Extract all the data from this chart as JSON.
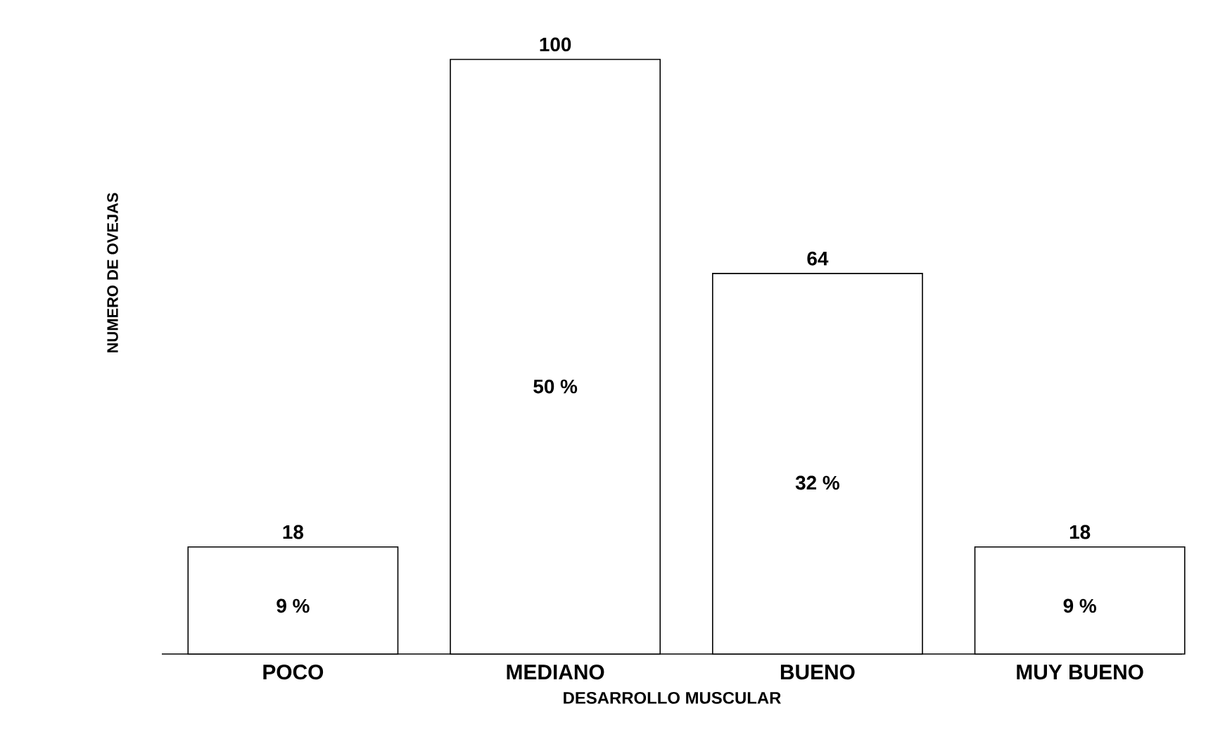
{
  "chart_data": {
    "type": "bar",
    "xlabel": "DESARROLLO MUSCULAR",
    "ylabel": "NUMERO DE OVEJAS",
    "categories": [
      "POCO",
      "MEDIANO",
      "BUENO",
      "MUY BUENO"
    ],
    "values": [
      18,
      100,
      64,
      18
    ],
    "color": "#ffffff",
    "data_labels": true,
    "tick_labels": "x",
    "annotations": [
      "9 %",
      "50 %",
      "32 %",
      "9 %"
    ]
  }
}
